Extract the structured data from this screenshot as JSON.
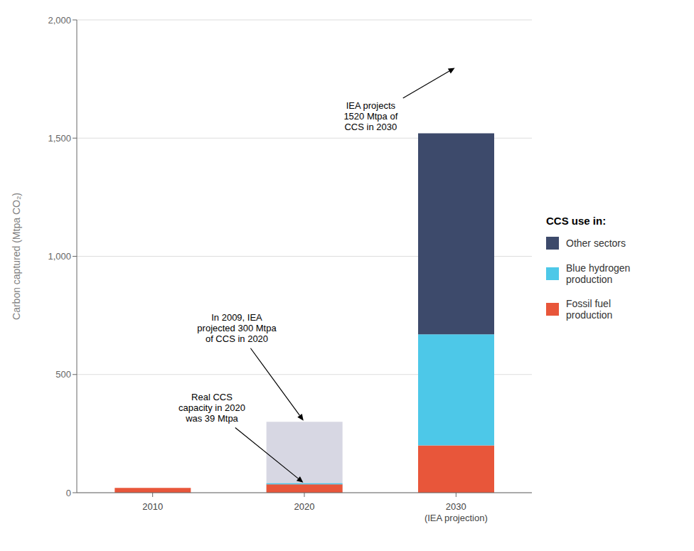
{
  "chart_data": {
    "type": "bar",
    "stacked": true,
    "grid": true,
    "legend": "right",
    "categories": [
      "2010",
      "2020",
      "2030\n(IEA projection)"
    ],
    "ylabel": "Carbon captured (Mtpa CO₂)",
    "ylim": [
      0,
      2000
    ],
    "yticks": [
      0,
      500,
      {
        "value": 1000,
        "label": "1,000"
      },
      {
        "value": 1500,
        "label": "1,500"
      },
      {
        "value": 2000,
        "label": "2,000"
      }
    ],
    "series": [
      {
        "name": "Fossil fuel\nproduction",
        "color": "#e8563a",
        "values": [
          20,
          35,
          200
        ]
      },
      {
        "name": "Blue hydrogen\nproduction",
        "color": "#4dc8e8",
        "values": [
          0,
          5,
          470
        ]
      },
      {
        "name": "Other sectors",
        "color": "#3d4a6b",
        "values": [
          0,
          0,
          850
        ]
      }
    ],
    "projection": {
      "color": "#b0b0c8",
      "values": [
        null,
        300,
        null
      ]
    },
    "legend_title": "CCS use in:",
    "annotations": [
      {
        "text": "IEA projects\n1520 Mtpa of\nCCS in 2030",
        "x": "2030\n(IEA projection)",
        "y": 1800
      },
      {
        "text": "In 2009, IEA\nprojected 300 Mtpa\nof CCS in 2020",
        "x": "2020",
        "y": 300
      },
      {
        "text": "Real CCS\ncapacity in 2020\nwas 39 Mtpa",
        "x": "2020",
        "y": 39
      }
    ]
  }
}
